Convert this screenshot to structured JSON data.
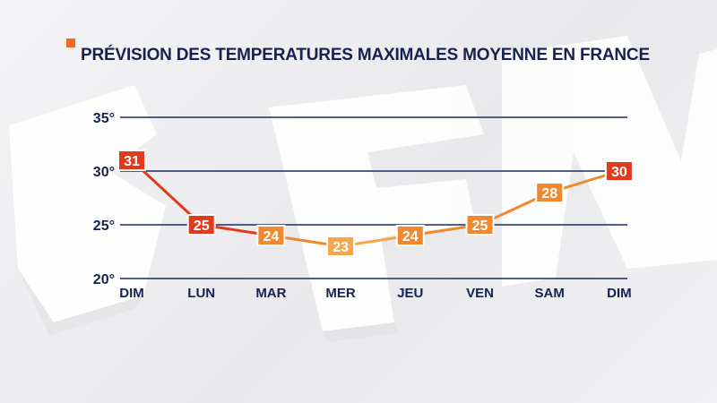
{
  "title": "PRÉVISION DES TEMPERATURES MAXIMALES MOYENNE EN FRANCE",
  "colors": {
    "accent": "#f26a21",
    "title_text": "#16214f",
    "grid": "#1b2a5c",
    "hot": "#e2391c",
    "warm": "#f0892e",
    "mild": "#f5a54a"
  },
  "chart_data": {
    "type": "line",
    "title": "PRÉVISION DES TEMPERATURES MAXIMALES MOYENNE EN FRANCE",
    "categories": [
      "DIM",
      "LUN",
      "MAR",
      "MER",
      "JEU",
      "VEN",
      "SAM",
      "DIM"
    ],
    "series": [
      {
        "values": [
          31,
          25,
          24,
          23,
          24,
          25,
          28,
          30
        ]
      }
    ],
    "data_labels": [
      "31",
      "25",
      "24",
      "23",
      "24",
      "25",
      "28",
      "30"
    ],
    "point_colors": [
      "#e2391c",
      "#e2391c",
      "#f0892e",
      "#f5a54a",
      "#f0892e",
      "#f0892e",
      "#f0892e",
      "#e2391c"
    ],
    "yticks": [
      20,
      25,
      30,
      35
    ],
    "ytick_labels": [
      "20°",
      "25°",
      "30°",
      "35°"
    ],
    "ylim": [
      20,
      35
    ],
    "grid": true,
    "xlabel": "",
    "ylabel": ""
  }
}
